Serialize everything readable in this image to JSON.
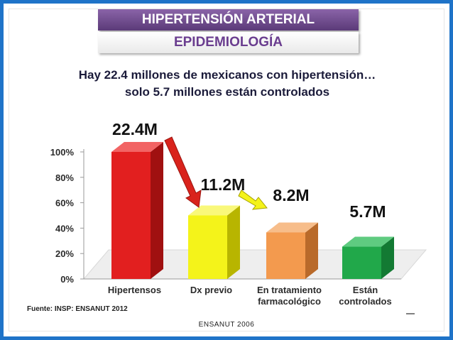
{
  "header": {
    "banner_title": "HIPERTENSIÓN ARTERIAL",
    "banner_subtitle": "EPIDEMIOLOGÍA"
  },
  "headline": {
    "line1": "Hay 22.4 millones de mexicanos con hipertensión…",
    "line2": "solo 5.7 millones están controlados"
  },
  "source_text": "Fuente: INSP: ENSANUT 2012",
  "footer_text": "ENSANUT 2006",
  "colors": {
    "bar_red": "#e21f1f",
    "bar_yellow": "#f4f31a",
    "bar_orange": "#f39a4e",
    "bar_green": "#21a84a",
    "arrow_red": "#d9231c",
    "arrow_yellow": "#f4f31a",
    "frame": "#1e73c8",
    "banner_purple": "#6b4a8c"
  },
  "chart_data": {
    "type": "bar",
    "categories": [
      [
        "Hipertensos"
      ],
      [
        "Dx previo"
      ],
      [
        "En tratamiento",
        "farmacológico"
      ],
      [
        "Están",
        "controlados"
      ]
    ],
    "values": [
      100,
      50,
      36.6,
      25.4
    ],
    "value_labels": [
      "22.4M",
      "11.2M",
      "8.2M",
      "5.7M"
    ],
    "y_ticks": [
      "0%",
      "20%",
      "40%",
      "60%",
      "80%",
      "100%"
    ],
    "ylim": [
      0,
      100
    ],
    "grid": false
  }
}
